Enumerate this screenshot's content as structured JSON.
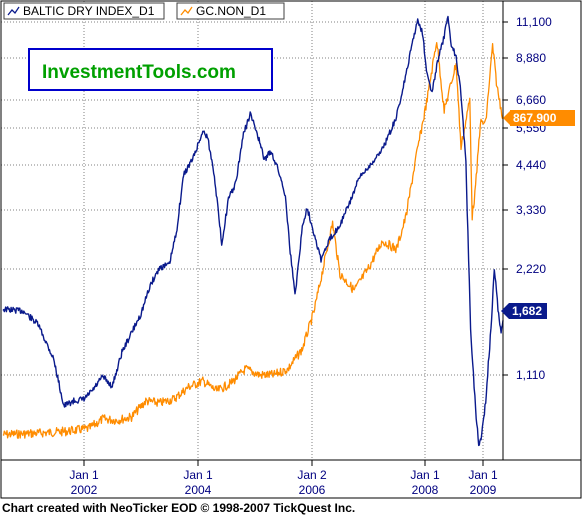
{
  "watermark": "InvestmentTools.com",
  "credit": "Chart created with NeoTicker EOD © 1998-2007 TickQuest Inc.",
  "colors": {
    "background": "#ffffff",
    "border": "#000000",
    "grid": "#808080",
    "tick_text": "#000080",
    "baltic": "#0a1a8c",
    "gold": "#ff8c00",
    "logo_text": "#00a000",
    "logo_border": "#0000cc"
  },
  "chart_data": {
    "type": "line",
    "title": "",
    "xlabel": "",
    "ylabel": "",
    "x_ticks": [
      {
        "month": "Jan 1",
        "year": "2002",
        "date": "2002-01-01"
      },
      {
        "month": "Jan 1",
        "year": "2004",
        "date": "2004-01-01"
      },
      {
        "month": "Jan 2",
        "year": "2006",
        "date": "2006-01-02"
      },
      {
        "month": "Jan 1",
        "year": "2008",
        "date": "2008-01-01"
      },
      {
        "month": "Jan 1",
        "year": "2009",
        "date": "2009-01-01"
      }
    ],
    "y_ticks": [
      "11,100",
      "8,880",
      "6,660",
      "5,550",
      "4,440",
      "3,330",
      "2,220",
      "1,110"
    ],
    "grid": true,
    "legend_position": "top-left",
    "series": [
      {
        "name": "BALTIC DRY INDEX_D1",
        "last_value_label": "1,682",
        "points": [
          [
            "2001-05-01",
            1800
          ],
          [
            "2001-07-01",
            1780
          ],
          [
            "2001-08-15",
            1640
          ],
          [
            "2001-10-01",
            1280
          ],
          [
            "2001-11-01",
            920
          ],
          [
            "2001-12-01",
            950
          ],
          [
            "2002-01-01",
            960
          ],
          [
            "2002-03-01",
            1020
          ],
          [
            "2002-05-01",
            1100
          ],
          [
            "2002-07-01",
            1040
          ],
          [
            "2002-09-01",
            1350
          ],
          [
            "2002-11-01",
            1550
          ],
          [
            "2003-01-01",
            1750
          ],
          [
            "2003-03-01",
            2050
          ],
          [
            "2003-05-01",
            2250
          ],
          [
            "2003-07-01",
            2300
          ],
          [
            "2003-08-15",
            2900
          ],
          [
            "2003-10-01",
            4200
          ],
          [
            "2003-12-01",
            4650
          ],
          [
            "2004-02-01",
            5450
          ],
          [
            "2004-03-01",
            5300
          ],
          [
            "2004-04-15",
            4200
          ],
          [
            "2004-06-01",
            2700
          ],
          [
            "2004-07-15",
            3600
          ],
          [
            "2004-09-01",
            4000
          ],
          [
            "2004-10-15",
            5300
          ],
          [
            "2004-12-01",
            6100
          ],
          [
            "2005-01-15",
            5400
          ],
          [
            "2005-03-01",
            4600
          ],
          [
            "2005-04-15",
            4850
          ],
          [
            "2005-06-01",
            4300
          ],
          [
            "2005-07-15",
            3700
          ],
          [
            "2005-08-15",
            2550
          ],
          [
            "2005-09-15",
            1950
          ],
          [
            "2005-11-01",
            3000
          ],
          [
            "2005-12-01",
            3400
          ],
          [
            "2006-01-15",
            2900
          ],
          [
            "2006-03-01",
            2400
          ],
          [
            "2006-05-01",
            2800
          ],
          [
            "2006-07-01",
            3050
          ],
          [
            "2006-09-01",
            3500
          ],
          [
            "2006-11-01",
            4100
          ],
          [
            "2007-01-01",
            4400
          ],
          [
            "2007-03-01",
            4700
          ],
          [
            "2007-05-01",
            5200
          ],
          [
            "2007-07-01",
            6000
          ],
          [
            "2007-09-01",
            8000
          ],
          [
            "2007-10-15",
            10000
          ],
          [
            "2007-11-15",
            11200
          ],
          [
            "2007-12-15",
            10500
          ],
          [
            "2008-01-15",
            8000
          ],
          [
            "2008-02-15",
            7000
          ],
          [
            "2008-03-15",
            8500
          ],
          [
            "2008-05-01",
            10200
          ],
          [
            "2008-05-25",
            11400
          ],
          [
            "2008-06-15",
            9700
          ],
          [
            "2008-07-15",
            9000
          ],
          [
            "2008-08-15",
            7000
          ],
          [
            "2008-09-15",
            4500
          ],
          [
            "2008-10-15",
            1600
          ],
          [
            "2008-11-15",
            900
          ],
          [
            "2008-12-05",
            680
          ],
          [
            "2008-12-20",
            720
          ],
          [
            "2009-01-15",
            950
          ],
          [
            "2009-02-15",
            1700
          ],
          [
            "2009-03-01",
            2250
          ],
          [
            "2009-03-20",
            1800
          ],
          [
            "2009-04-05",
            1550
          ],
          [
            "2009-04-15",
            1682
          ]
        ]
      },
      {
        "name": "GC.NON_D1",
        "last_value_label": "867.900",
        "points": [
          [
            "2001-05-01",
            268
          ],
          [
            "2001-08-01",
            272
          ],
          [
            "2001-11-01",
            278
          ],
          [
            "2002-02-01",
            288
          ],
          [
            "2002-05-01",
            315
          ],
          [
            "2002-08-01",
            312
          ],
          [
            "2002-11-01",
            320
          ],
          [
            "2003-02-01",
            360
          ],
          [
            "2003-05-01",
            355
          ],
          [
            "2003-08-01",
            365
          ],
          [
            "2003-11-01",
            395
          ],
          [
            "2004-02-01",
            410
          ],
          [
            "2004-05-01",
            385
          ],
          [
            "2004-08-01",
            405
          ],
          [
            "2004-11-01",
            440
          ],
          [
            "2005-02-01",
            425
          ],
          [
            "2005-05-01",
            425
          ],
          [
            "2005-08-01",
            440
          ],
          [
            "2005-11-01",
            480
          ],
          [
            "2006-01-15",
            550
          ],
          [
            "2006-05-15",
            710
          ],
          [
            "2006-07-01",
            620
          ],
          [
            "2006-10-01",
            590
          ],
          [
            "2007-01-01",
            630
          ],
          [
            "2007-04-01",
            680
          ],
          [
            "2007-07-01",
            665
          ],
          [
            "2007-09-01",
            720
          ],
          [
            "2007-11-01",
            800
          ],
          [
            "2008-01-15",
            900
          ],
          [
            "2008-03-15",
            1000
          ],
          [
            "2008-05-01",
            880
          ],
          [
            "2008-07-15",
            960
          ],
          [
            "2008-08-15",
            820
          ],
          [
            "2008-10-10",
            900
          ],
          [
            "2008-10-25",
            720
          ],
          [
            "2008-11-15",
            760
          ],
          [
            "2008-12-15",
            860
          ],
          [
            "2009-01-15",
            860
          ],
          [
            "2009-02-20",
            990
          ],
          [
            "2009-03-15",
            920
          ],
          [
            "2009-04-15",
            868
          ]
        ]
      }
    ]
  }
}
